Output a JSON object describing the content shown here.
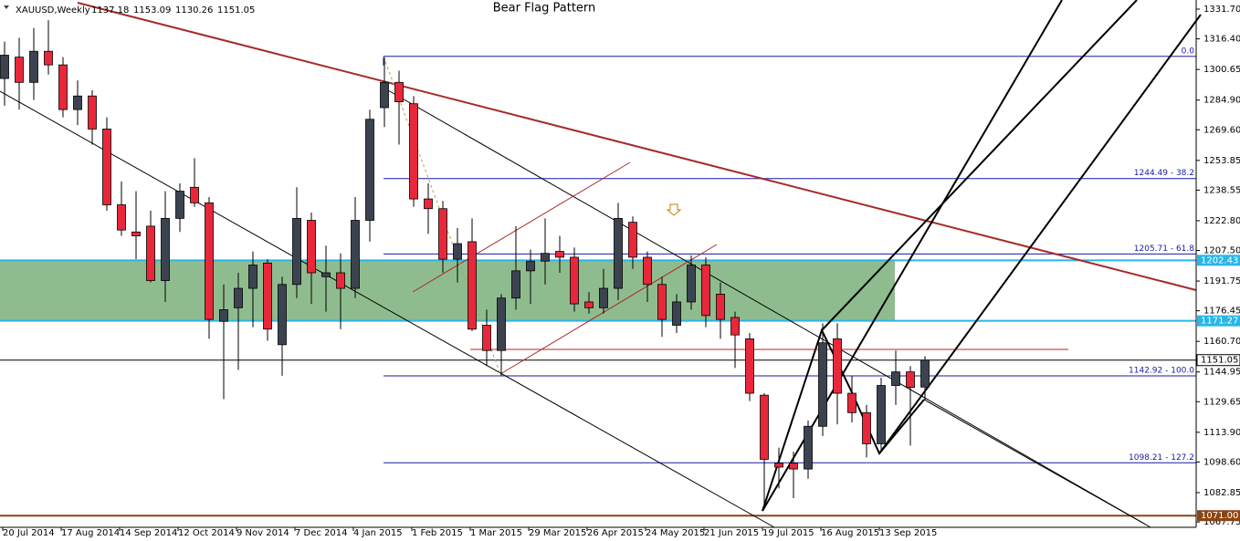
{
  "chart_data": {
    "type": "candlestick",
    "title": "Bear Flag Pattern",
    "symbol": "XAUUSD,Weekly",
    "header_ohlc": [
      1137.18,
      1153.09,
      1130.26,
      1151.05
    ],
    "categories": [
      "20 Jul 2014",
      null,
      null,
      null,
      "17 Aug 2014",
      null,
      null,
      null,
      "14 Sep 2014",
      null,
      null,
      null,
      "12 Oct 2014",
      null,
      null,
      null,
      "9 Nov 2014",
      null,
      null,
      null,
      "7 Dec 2014",
      null,
      null,
      null,
      "4 Jan 2015",
      null,
      null,
      null,
      "1 Feb 2015",
      null,
      null,
      null,
      "1 Mar 2015",
      null,
      null,
      null,
      "29 Mar 2015",
      null,
      null,
      null,
      "26 Apr 2015",
      null,
      null,
      null,
      "24 May 2015",
      null,
      null,
      null,
      "21 Jun 2015",
      null,
      null,
      null,
      "19 Jul 2015",
      null,
      null,
      null,
      "16 Aug 2015",
      null,
      null,
      null,
      "13 Sep 2015",
      null,
      null,
      null
    ],
    "open": [
      1296,
      1307,
      1294,
      1310,
      1303,
      1280,
      1287,
      1270,
      1231,
      1217,
      1220,
      1192,
      1224,
      1240,
      1232,
      1171,
      1178,
      1188,
      1201,
      1159,
      1190,
      1223,
      1194,
      1196,
      1188,
      1223,
      1281,
      1294,
      1283,
      1234,
      1229,
      1203,
      1212,
      1169,
      1156,
      1183,
      1197,
      1202,
      1207,
      1204,
      1181,
      1178,
      1188,
      1222,
      1204,
      1190,
      1169,
      1181,
      1200,
      1185,
      1173,
      1162,
      1133,
      1098,
      1098,
      1095,
      1117,
      1162,
      1134,
      1124,
      1108,
      1138,
      1145,
      1137.18
    ],
    "high": [
      1315,
      1317,
      1322,
      1326,
      1307,
      1295,
      1290,
      1276,
      1243,
      1238,
      1228,
      1238,
      1242,
      1255,
      1235,
      1190,
      1196,
      1207,
      1203,
      1194,
      1240,
      1227,
      1210,
      1206,
      1235,
      1280,
      1307,
      1300,
      1287,
      1242,
      1233,
      1219,
      1224,
      1177,
      1185,
      1220,
      1208,
      1224,
      1215,
      1209,
      1186,
      1198,
      1232,
      1225,
      1207,
      1194,
      1185,
      1205,
      1204,
      1191,
      1176,
      1165,
      1134,
      1106,
      1104,
      1120,
      1170,
      1170,
      1143,
      1128,
      1142,
      1156,
      1148,
      1153.09
    ],
    "low": [
      1282,
      1280,
      1285,
      1298,
      1276,
      1272,
      1262,
      1228,
      1215,
      1203,
      1191,
      1181,
      1217,
      1230,
      1162,
      1131,
      1146,
      1168,
      1161,
      1143,
      1183,
      1180,
      1176,
      1167,
      1183,
      1212,
      1271,
      1262,
      1230,
      1216,
      1196,
      1191,
      1166,
      1148,
      1143,
      1177,
      1180,
      1190,
      1196,
      1176,
      1175,
      1175,
      1182,
      1198,
      1181,
      1163,
      1165,
      1177,
      1168,
      1162,
      1147,
      1130,
      1077,
      1085,
      1080,
      1090,
      1112,
      1118,
      1119,
      1101,
      1105,
      1128,
      1107,
      1130.26
    ],
    "close": [
      1308,
      1294,
      1310,
      1303,
      1280,
      1287,
      1270,
      1231,
      1218,
      1215,
      1192,
      1224,
      1238,
      1232,
      1172,
      1177,
      1188,
      1200,
      1167,
      1190,
      1224,
      1196,
      1196,
      1188,
      1223,
      1275,
      1294,
      1284,
      1234,
      1229,
      1203,
      1211,
      1167,
      1156,
      1183,
      1197,
      1202,
      1206,
      1204,
      1180,
      1178,
      1188,
      1224,
      1204,
      1190,
      1172,
      1181,
      1200,
      1174,
      1172,
      1164,
      1134,
      1100,
      1096,
      1095,
      1117,
      1160,
      1134,
      1124,
      1108,
      1138,
      1145,
      1137,
      1151.05
    ],
    "up_color": "#3c4350",
    "down_color": "#e8283a",
    "ylim": [
      1065,
      1336.4
    ],
    "yticks": [
      {
        "value": 1331.7,
        "label": "1331.70"
      },
      {
        "value": 1316.4,
        "label": "1316.40"
      },
      {
        "value": 1300.65,
        "label": "1300.65"
      },
      {
        "value": 1284.9,
        "label": "1284.90"
      },
      {
        "value": 1269.6,
        "label": "1269.60"
      },
      {
        "value": 1253.85,
        "label": "1253.85"
      },
      {
        "value": 1238.55,
        "label": "1238.55"
      },
      {
        "value": 1222.8,
        "label": "1222.80"
      },
      {
        "value": 1207.5,
        "label": "1207.50"
      },
      {
        "value": 1191.75,
        "label": "1191.75"
      },
      {
        "value": 1176.45,
        "label": "1176.45"
      },
      {
        "value": 1160.7,
        "label": "1160.70"
      },
      {
        "value": 1144.95,
        "label": "1144.95"
      },
      {
        "value": 1129.65,
        "label": "1129.65"
      },
      {
        "value": 1113.9,
        "label": "1113.90"
      },
      {
        "value": 1098.6,
        "label": "1098.60"
      },
      {
        "value": 1082.85,
        "label": "1082.85"
      },
      {
        "value": 1067.75,
        "label": "1067.75"
      }
    ],
    "fib_levels": [
      {
        "price": 1307.4,
        "label": "0.0"
      },
      {
        "price": 1244.49,
        "label": "1244.49 - 38.2"
      },
      {
        "price": 1205.71,
        "label": "1205.71 - 61.8"
      },
      {
        "price": 1142.92,
        "label": "1142.92 - 100.0"
      },
      {
        "price": 1098.21,
        "label": "1098.21 - 127.2"
      }
    ],
    "fib_color": "#1a1aa6",
    "levels": [
      {
        "price": 1202.43,
        "color": "#29b6e8"
      },
      {
        "price": 1171.27,
        "color": "#29b6e8"
      },
      {
        "price": 1151.05,
        "color": "#000000"
      },
      {
        "price": 1071,
        "label": "1071.00",
        "color": "#8b4513"
      }
    ],
    "zone_color": "#8fbc8f"
  }
}
